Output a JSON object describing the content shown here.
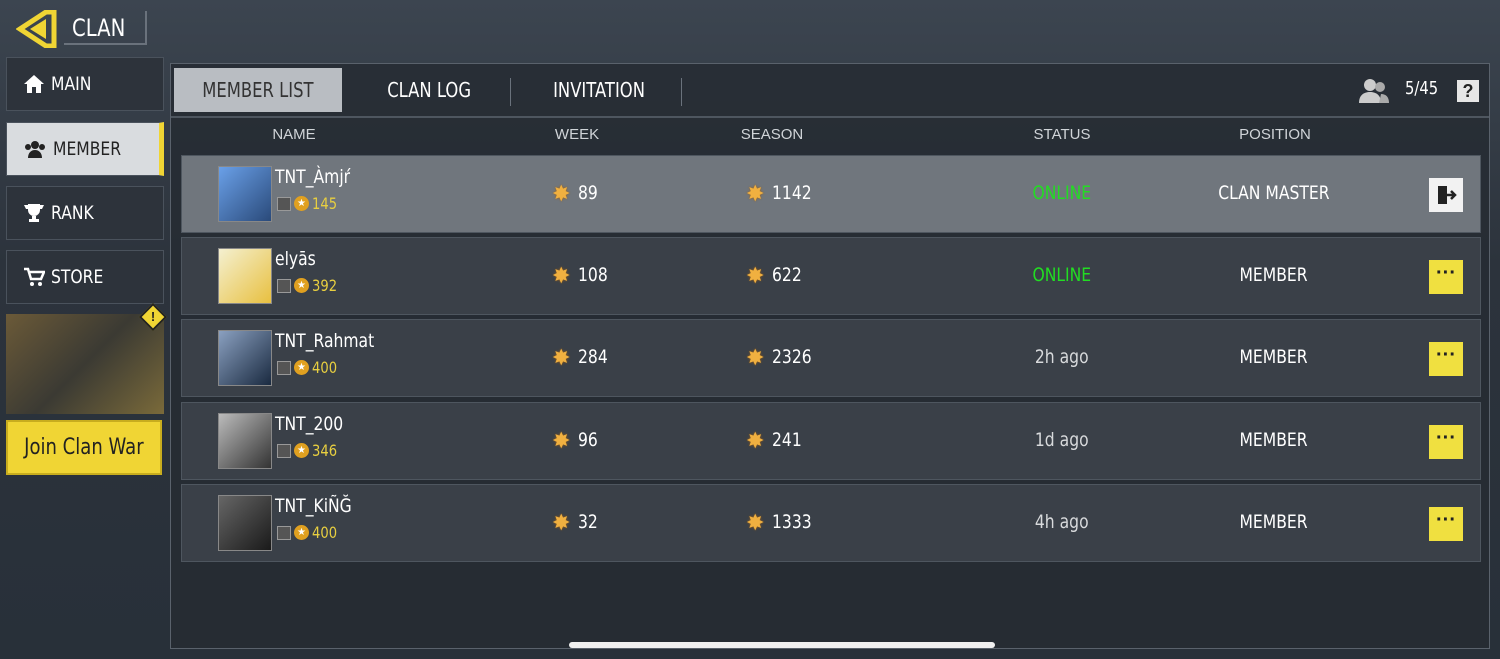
{
  "header": {
    "title": "CLAN"
  },
  "sidebar": {
    "items": [
      {
        "label": "MAIN",
        "icon": "home-icon"
      },
      {
        "label": "MEMBER",
        "icon": "members-icon",
        "active": true
      },
      {
        "label": "RANK",
        "icon": "trophy-icon"
      },
      {
        "label": "STORE",
        "icon": "cart-icon"
      }
    ],
    "join_label": "Join Clan War",
    "alert": "!"
  },
  "tabs": [
    {
      "label": "MEMBER LIST",
      "active": true
    },
    {
      "label": "CLAN LOG"
    },
    {
      "label": "INVITATION"
    }
  ],
  "member_count": "5/45",
  "help": "?",
  "columns": {
    "name": "NAME",
    "week": "WEEK",
    "season": "SEASON",
    "status": "STATUS",
    "position": "POSITION"
  },
  "colors": {
    "accent": "#f0d534",
    "online": "#22dd22"
  },
  "members": [
    {
      "name": "TNT_Àmjŕ",
      "level": "145",
      "week": "89",
      "season": "1142",
      "status": "ONLINE",
      "position": "CLAN MASTER",
      "action": "leave-icon"
    },
    {
      "name": "elyās",
      "level": "392",
      "week": "108",
      "season": "622",
      "status": "ONLINE",
      "position": "MEMBER",
      "action": "more-icon"
    },
    {
      "name": "TNT_Rahmat",
      "level": "400",
      "week": "284",
      "season": "2326",
      "status": "2h ago",
      "position": "MEMBER",
      "action": "more-icon"
    },
    {
      "name": "TNT_200",
      "level": "346",
      "week": "96",
      "season": "241",
      "status": "1d ago",
      "position": "MEMBER",
      "action": "more-icon"
    },
    {
      "name": "TNT_KiÑĞ",
      "level": "400",
      "week": "32",
      "season": "1333",
      "status": "4h ago",
      "position": "MEMBER",
      "action": "more-icon"
    }
  ]
}
